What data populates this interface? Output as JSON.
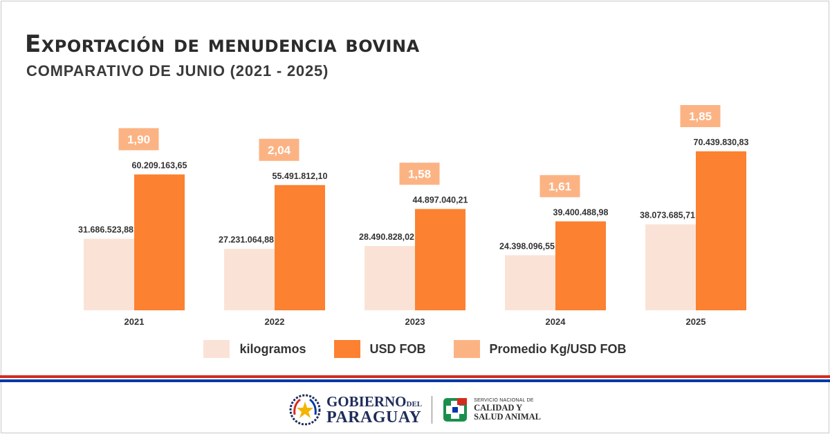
{
  "header": {
    "title": "Exportación de menudencia bovina",
    "subtitle": "COMPARATIVO DE JUNIO (2021 - 2025)"
  },
  "colors": {
    "kilogramos": "#fae3d6",
    "usd_fob": "#fc8131",
    "promedio": "#fcb384",
    "flag_red": "#d52b1e",
    "flag_blue": "#0038a8",
    "text_dark": "#2b2b2b"
  },
  "chart_data": {
    "type": "bar",
    "categories": [
      "2021",
      "2022",
      "2023",
      "2024",
      "2025"
    ],
    "series": [
      {
        "name": "kilogramos",
        "values": [
          31686523.88,
          27231064.88,
          28490828.02,
          24398096.55,
          38073685.71
        ],
        "labels": [
          "31.686.523,88",
          "27.231.064,88",
          "28.490.828,02",
          "24.398.096,55",
          "38.073.685,71"
        ]
      },
      {
        "name": "USD FOB",
        "values": [
          60209163.65,
          55491812.1,
          44897040.21,
          39400488.98,
          70439830.83
        ],
        "labels": [
          "60.209.163,65",
          "55.491.812,10",
          "44.897.040,21",
          "39.400.488,98",
          "70.439.830,83"
        ]
      },
      {
        "name": "Promedio Kg/USD FOB",
        "values": [
          1.9,
          2.04,
          1.58,
          1.61,
          1.85
        ],
        "labels": [
          "1,90",
          "2,04",
          "1,58",
          "1,61",
          "1,85"
        ]
      }
    ],
    "ylim": [
      0,
      70439830.83
    ],
    "grid": false,
    "legend_position": "bottom"
  },
  "legend": {
    "items": [
      {
        "label": "kilogramos",
        "color": "#fae3d6"
      },
      {
        "label": "USD FOB",
        "color": "#fc8131"
      },
      {
        "label": "Promedio Kg/USD FOB",
        "color": "#fcb384"
      }
    ]
  },
  "footer": {
    "gov_line1": "GOBIERNO",
    "gov_del": "DEL",
    "gov_line2": "PARAGUAY",
    "senacsa_line1": "SERVICIO NACIONAL DE",
    "senacsa_line2": "CALIDAD Y",
    "senacsa_line3": "SALUD ANIMAL",
    "icons": [
      "paraguay-seal-icon",
      "senacsa-logo-icon"
    ]
  }
}
